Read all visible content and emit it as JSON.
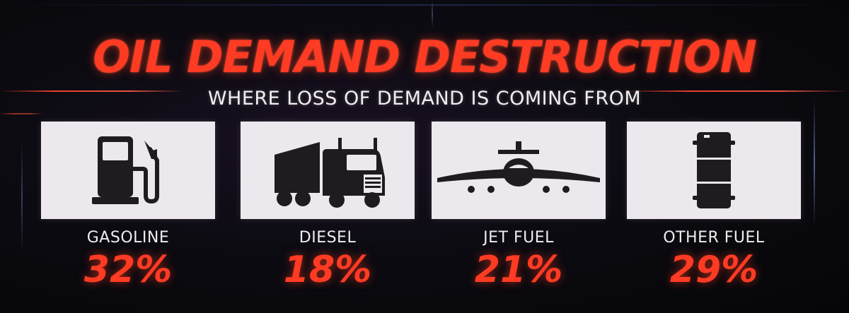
{
  "title": "OIL DEMAND DESTRUCTION",
  "subtitle": "WHERE LOSS OF DEMAND IS COMING FROM",
  "colors": {
    "accent": "#ff3b23",
    "panel": "#ece8ee",
    "icon": "#1f1b21",
    "background": "#0b0b10"
  },
  "categories": [
    {
      "label": "GASOLINE",
      "value": "32%",
      "icon": "gas-pump-icon"
    },
    {
      "label": "DIESEL",
      "value": "18%",
      "icon": "truck-icon"
    },
    {
      "label": "JET FUEL",
      "value": "21%",
      "icon": "airplane-icon"
    },
    {
      "label": "OTHER FUEL",
      "value": "29%",
      "icon": "oil-barrel-icon"
    }
  ]
}
